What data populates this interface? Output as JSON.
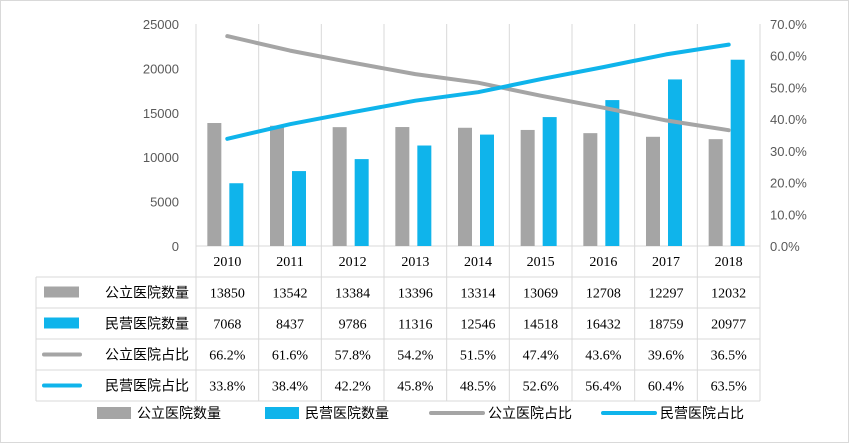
{
  "chart_data": {
    "type": "bar",
    "categories": [
      "2010",
      "2011",
      "2012",
      "2013",
      "2014",
      "2015",
      "2016",
      "2017",
      "2018"
    ],
    "series": [
      {
        "name": "公立医院数量",
        "type": "bar",
        "axis": "left",
        "color": "#a5a5a5",
        "values": [
          13850,
          13542,
          13384,
          13396,
          13314,
          13069,
          12708,
          12297,
          12032
        ],
        "labels": [
          "13850",
          "13542",
          "13384",
          "13396",
          "13314",
          "13069",
          "12708",
          "12297",
          "12032"
        ]
      },
      {
        "name": "民营医院数量",
        "type": "bar",
        "axis": "left",
        "color": "#0fb4eb",
        "values": [
          7068,
          8437,
          9786,
          11316,
          12546,
          14518,
          16432,
          18759,
          20977
        ],
        "labels": [
          "7068",
          "8437",
          "9786",
          "11316",
          "12546",
          "14518",
          "16432",
          "18759",
          "20977"
        ]
      },
      {
        "name": "公立医院占比",
        "type": "line",
        "axis": "right",
        "color": "#a5a5a5",
        "values": [
          66.2,
          61.6,
          57.8,
          54.2,
          51.5,
          47.4,
          43.6,
          39.6,
          36.5
        ],
        "labels": [
          "66.2%",
          "61.6%",
          "57.8%",
          "54.2%",
          "51.5%",
          "47.4%",
          "43.6%",
          "39.6%",
          "36.5%"
        ]
      },
      {
        "name": "民营医院占比",
        "type": "line",
        "axis": "right",
        "color": "#0fb4eb",
        "values": [
          33.8,
          38.4,
          42.2,
          45.8,
          48.5,
          52.6,
          56.4,
          60.4,
          63.5
        ],
        "labels": [
          "33.8%",
          "38.4%",
          "42.2%",
          "45.8%",
          "48.5%",
          "52.6%",
          "56.4%",
          "60.4%",
          "63.5%"
        ]
      }
    ],
    "y_left": {
      "range": [
        0,
        25000
      ],
      "ticks": [
        "25000",
        "20000",
        "15000",
        "10000",
        "5000",
        "0"
      ]
    },
    "y_right": {
      "range": [
        0,
        70
      ],
      "ticks": [
        "70.0%",
        "60.0%",
        "50.0%",
        "40.0%",
        "30.0%",
        "20.0%",
        "10.0%",
        "0.0%"
      ]
    },
    "data_table": true,
    "legend_position": "bottom",
    "grid": false
  }
}
